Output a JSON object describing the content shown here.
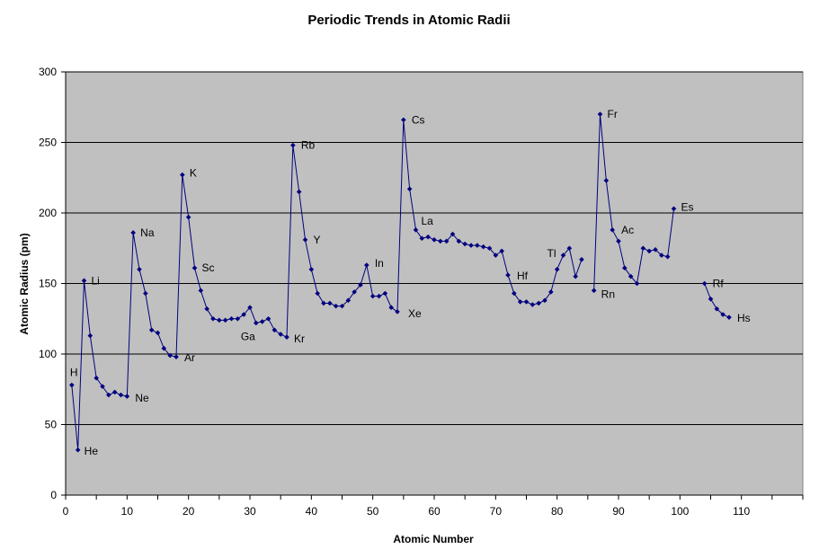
{
  "chart_data": {
    "type": "line",
    "title": "Periodic Trends in Atomic Radii",
    "xlabel": "Atomic Number",
    "ylabel": "Atomic Radius (pm)",
    "xlim": [
      0,
      120
    ],
    "ylim": [
      0,
      300
    ],
    "x_ticks": [
      "0",
      "10",
      "20",
      "30",
      "40",
      "50",
      "60",
      "70",
      "80",
      "90",
      "100",
      "110"
    ],
    "y_ticks": [
      "0",
      "50",
      "100",
      "150",
      "200",
      "250",
      "300"
    ],
    "grid": "horizontal",
    "colors": {
      "plot_bg": "#c0c0c0",
      "line": "#000080",
      "grid": "#000000"
    },
    "segments": [
      {
        "x": [
          1,
          2,
          3,
          4,
          5,
          6,
          7,
          8,
          9,
          10,
          11,
          12,
          13,
          14,
          15,
          16,
          17,
          18,
          19,
          20,
          21,
          22,
          23,
          24,
          25,
          26,
          27,
          28,
          29,
          30,
          31,
          32,
          33,
          34,
          35,
          36,
          37,
          38,
          39,
          40,
          41,
          42,
          43,
          44,
          45,
          46,
          47,
          48,
          49,
          50,
          51,
          52,
          53,
          54,
          55,
          56,
          57,
          58,
          59,
          60,
          61,
          62,
          63,
          64,
          65,
          66,
          67,
          68,
          69,
          70,
          71,
          72,
          73,
          74,
          75,
          76,
          77,
          78,
          79,
          80,
          81,
          82,
          83,
          84
        ],
        "y": [
          78,
          32,
          152,
          113,
          83,
          77,
          71,
          73,
          71,
          70,
          186,
          160,
          143,
          117,
          115,
          104,
          99,
          98,
          227,
          197,
          161,
          145,
          132,
          125,
          124,
          124,
          125,
          125,
          128,
          133,
          122,
          123,
          125,
          117,
          114,
          112,
          248,
          215,
          181,
          160,
          143,
          136,
          136,
          134,
          134,
          138,
          144,
          149,
          163,
          141,
          141,
          143,
          133,
          130,
          266,
          217,
          188,
          182,
          183,
          181,
          180,
          180,
          185,
          180,
          178,
          177,
          177,
          176,
          175,
          170,
          173,
          156,
          143,
          137,
          137,
          135,
          136,
          138,
          144,
          160,
          170,
          175,
          155,
          167
        ]
      },
      {
        "x": [
          86,
          87,
          88,
          89,
          90,
          91,
          92,
          93,
          94,
          95,
          96,
          97,
          98,
          99
        ],
        "y": [
          145,
          270,
          223,
          188,
          180,
          161,
          155,
          150,
          175,
          173,
          174,
          170,
          169,
          203
        ]
      },
      {
        "x": [
          104,
          105,
          106,
          107,
          108
        ],
        "y": [
          150,
          139,
          132,
          128,
          126
        ]
      }
    ],
    "annotations": [
      {
        "text": "H",
        "x": 1,
        "y": 78
      },
      {
        "text": "He",
        "x": 2,
        "y": 32
      },
      {
        "text": "Li",
        "x": 3,
        "y": 152
      },
      {
        "text": "Ne",
        "x": 10,
        "y": 70
      },
      {
        "text": "Na",
        "x": 11,
        "y": 186
      },
      {
        "text": "Ar",
        "x": 18,
        "y": 98
      },
      {
        "text": "K",
        "x": 19,
        "y": 227
      },
      {
        "text": "Sc",
        "x": 21,
        "y": 161
      },
      {
        "text": "Ga",
        "x": 31,
        "y": 122
      },
      {
        "text": "Kr",
        "x": 36,
        "y": 112
      },
      {
        "text": "Rb",
        "x": 37,
        "y": 248
      },
      {
        "text": "Y",
        "x": 39,
        "y": 181
      },
      {
        "text": "In",
        "x": 49,
        "y": 163
      },
      {
        "text": "Xe",
        "x": 54,
        "y": 130
      },
      {
        "text": "Cs",
        "x": 55,
        "y": 266
      },
      {
        "text": "La",
        "x": 57,
        "y": 188
      },
      {
        "text": "Hf",
        "x": 72,
        "y": 156
      },
      {
        "text": "Tl",
        "x": 81,
        "y": 170
      },
      {
        "text": "Rn",
        "x": 86,
        "y": 145
      },
      {
        "text": "Fr",
        "x": 87,
        "y": 270
      },
      {
        "text": "Ac",
        "x": 89,
        "y": 188
      },
      {
        "text": "Es",
        "x": 99,
        "y": 203
      },
      {
        "text": "Rf",
        "x": 104,
        "y": 150
      },
      {
        "text": "Hs",
        "x": 108,
        "y": 126
      }
    ]
  }
}
